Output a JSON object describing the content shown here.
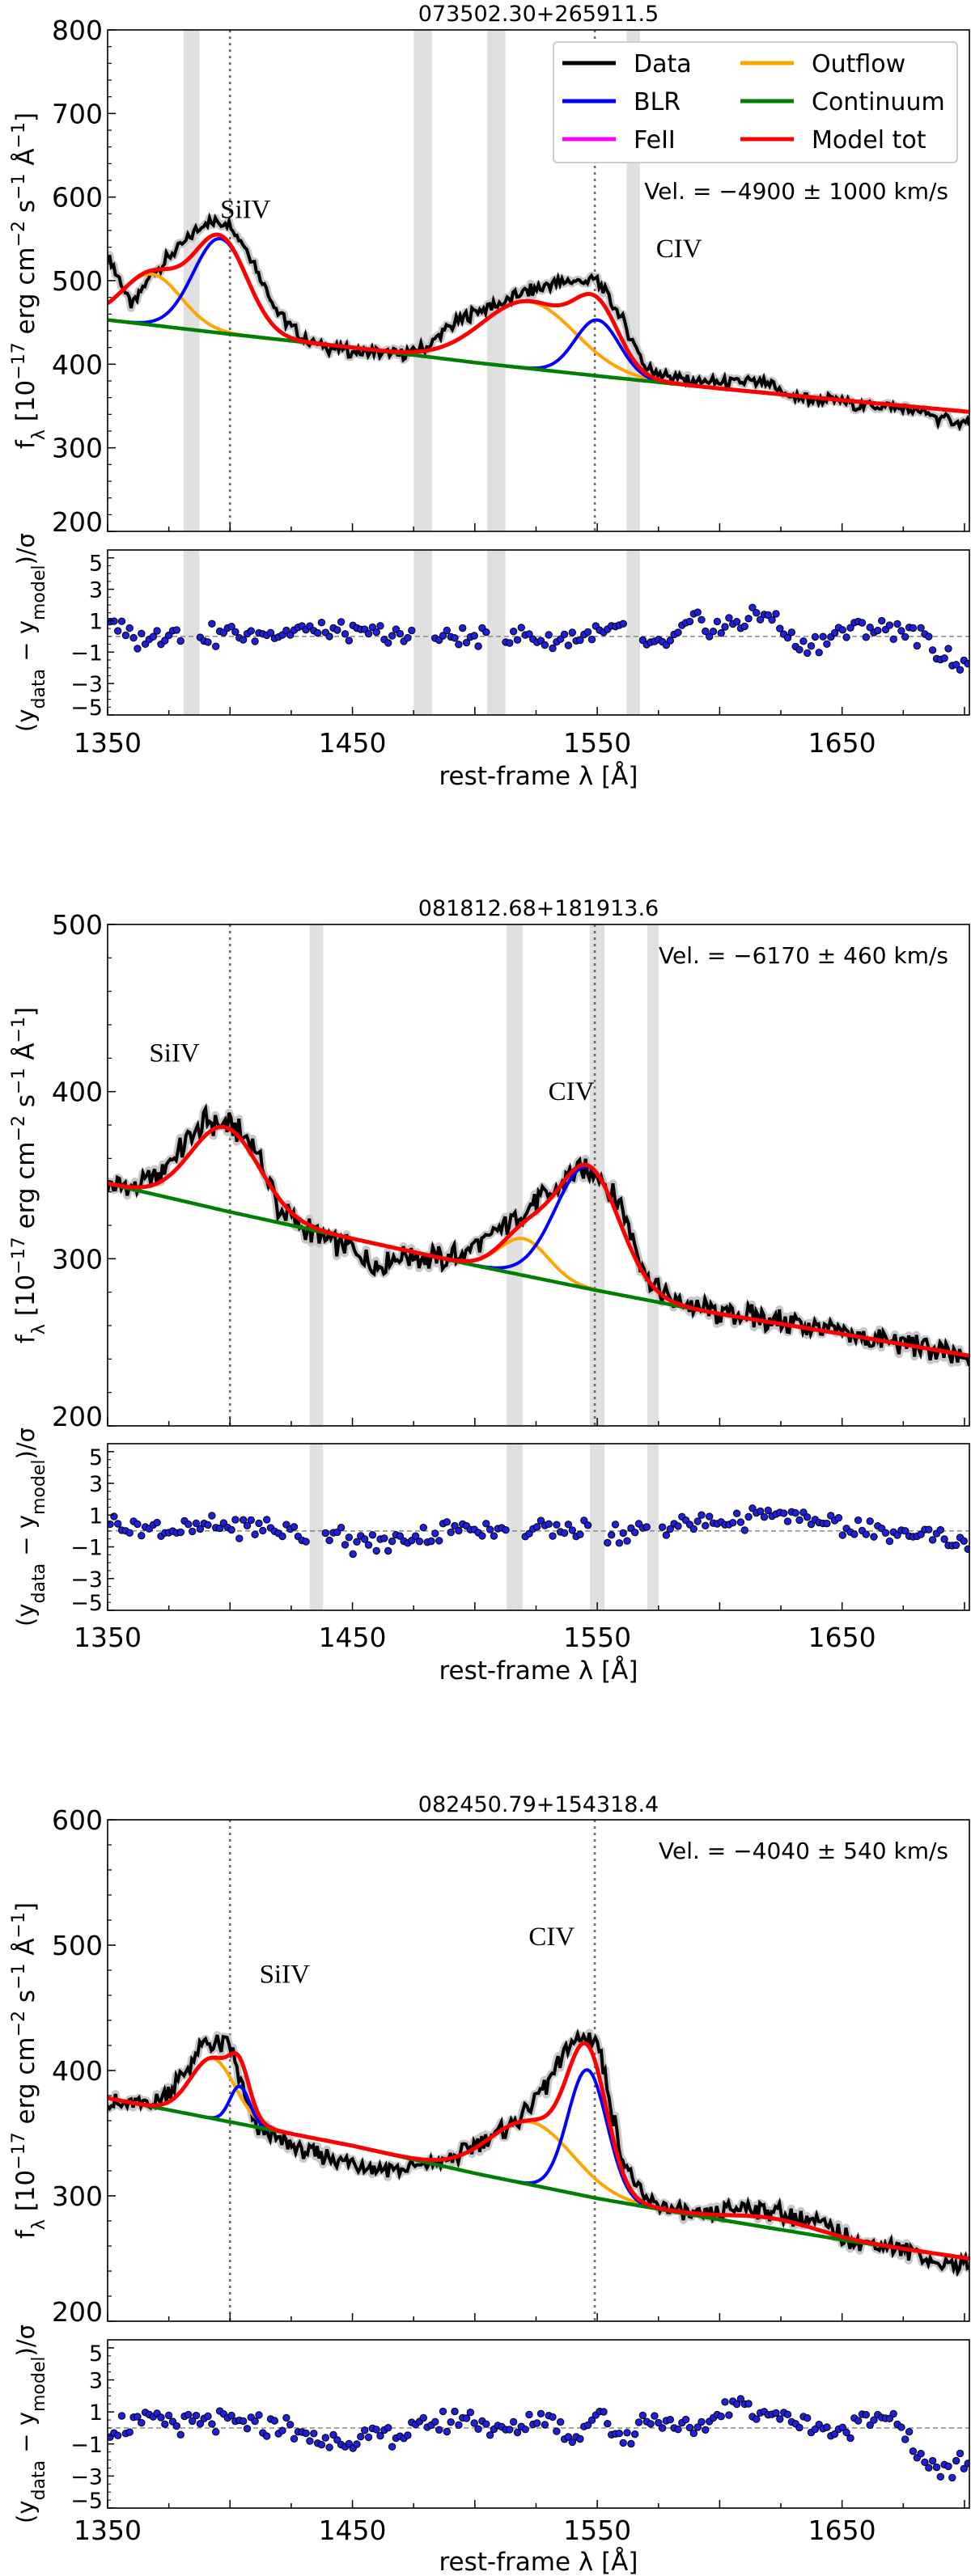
{
  "legend": {
    "entries": [
      {
        "label": "Data",
        "color": "#000000"
      },
      {
        "label": "Outflow",
        "color": "#ffa500"
      },
      {
        "label": "BLR",
        "color": "#0000ff"
      },
      {
        "label": "Continuum",
        "color": "#008000"
      },
      {
        "label": "FeII",
        "color": "#ff00ff"
      },
      {
        "label": "Model tot",
        "color": "#ff0000"
      }
    ],
    "placement": "top-right (first panel only)"
  },
  "axis_text": {
    "ylabel_main": {
      "f": "f",
      "sub": "λ",
      "a": " [10",
      "e1": "−17",
      "b": " erg cm",
      "e2": "−2",
      "c": " s",
      "e3": "−1",
      "d": " Å",
      "e4": "−1",
      "end": "]"
    },
    "ylabel_resid": {
      "open": "(y",
      "sub1": "data",
      "mid": " − y",
      "sub2": "model",
      "end": ")/σ"
    },
    "xlabel": "rest-frame λ [Å]",
    "line_label_siiv": "SiIV",
    "line_label_civ": "CIV"
  },
  "chart_data": [
    {
      "type": "line",
      "title": "073502.30+265911.5",
      "velocity_text": "Vel. = −4900 ± 1000 km/s",
      "xlim": [
        1350,
        1702
      ],
      "ylim": [
        200,
        800
      ],
      "yticks": [
        "200",
        "300",
        "400",
        "500",
        "600",
        "700",
        "800"
      ],
      "xticks": [
        "1350",
        "1450",
        "1550",
        "1650"
      ],
      "resid_ylim": [
        -5,
        5.5
      ],
      "resid_yticks": [
        "5",
        "3",
        "1",
        "−1",
        "−3",
        "−5"
      ],
      "reference_lines": [
        1400,
        1549
      ],
      "masked_ranges": [
        [
          1381,
          1387.5
        ],
        [
          1475,
          1482.5
        ],
        [
          1505,
          1512.5
        ],
        [
          1562,
          1567.5
        ]
      ],
      "continuum": {
        "x": [
          1350,
          1400,
          1450,
          1500,
          1550,
          1600,
          1650,
          1702
        ],
        "y": [
          453,
          436,
          420,
          402,
          386,
          371,
          357,
          343
        ]
      },
      "components": [
        {
          "name": "Outflow",
          "center": 1368,
          "amplitude": 61,
          "sigma": 12
        },
        {
          "name": "BLR",
          "center": 1396,
          "amplitude": 113,
          "sigma": 11
        },
        {
          "name": "Outflow",
          "center": 1522,
          "amplitude": 80,
          "sigma": 19
        },
        {
          "name": "BLR",
          "center": 1550,
          "amplitude": 67,
          "sigma": 9
        }
      ],
      "data": {
        "x_start": 1350,
        "x_step": 10,
        "y": [
          530,
          470,
          515,
          540,
          570,
          570,
          520,
          460,
          430,
          420,
          415,
          415,
          412,
          420,
          445,
          462,
          472,
          485,
          495,
          500,
          500,
          455,
          395,
          385,
          380,
          378,
          380,
          375,
          360,
          358,
          355,
          350,
          348,
          345,
          335,
          330
        ]
      },
      "residuals": {
        "x_start": 1350,
        "x_step": 10,
        "y": [
          1.2,
          -0.3,
          0,
          0.3,
          0,
          0.2,
          0,
          0.3,
          0.5,
          0.2,
          0.1,
          0.2,
          -0.2,
          0,
          0,
          -0.2,
          0,
          0.1,
          -0.2,
          0,
          0.3,
          0.5,
          -0.8,
          -0.5,
          1,
          0.5,
          1,
          1.5,
          -0.5,
          -0.5,
          0.3,
          0.5,
          0.6,
          0.2,
          -1,
          -2
        ]
      },
      "labels": {
        "siiv_at": [
          1396,
          575
        ],
        "civ_at": [
          1574,
          528
        ]
      }
    },
    {
      "type": "line",
      "title": "081812.68+181913.6",
      "velocity_text": "Vel. = −6170 ± 460 km/s",
      "xlim": [
        1350,
        1702
      ],
      "ylim": [
        200,
        500
      ],
      "yticks": [
        "200",
        "300",
        "400",
        "500"
      ],
      "xticks": [
        "1350",
        "1450",
        "1550",
        "1650"
      ],
      "resid_ylim": [
        -5,
        5.5
      ],
      "resid_yticks": [
        "5",
        "3",
        "1",
        "−1",
        "−3",
        "−5"
      ],
      "reference_lines": [
        1400,
        1549
      ],
      "masked_ranges": [
        [
          1432.5,
          1438
        ],
        [
          1513,
          1519.5
        ],
        [
          1547,
          1553
        ],
        [
          1570.5,
          1575
        ]
      ],
      "continuum": {
        "x": [
          1350,
          1400,
          1450,
          1500,
          1550,
          1600,
          1650,
          1702
        ],
        "y": [
          345,
          328,
          312,
          296,
          281,
          267,
          255,
          242
        ]
      },
      "components": [
        {
          "name": "BLR",
          "center": 1398,
          "amplitude": 50,
          "sigma": 14
        },
        {
          "name": "Outflow",
          "center": 1520,
          "amplitude": 22,
          "sigma": 10
        },
        {
          "name": "BLR",
          "center": 1546,
          "amplitude": 73,
          "sigma": 13
        }
      ],
      "data": {
        "x_start": 1350,
        "x_step": 10,
        "y": [
          345,
          342,
          350,
          365,
          382,
          380,
          368,
          330,
          318,
          312,
          305,
          295,
          302,
          300,
          300,
          307,
          318,
          328,
          338,
          352,
          352,
          330,
          290,
          275,
          270,
          268,
          266,
          263,
          262,
          258,
          255,
          252,
          250,
          248,
          245,
          240
        ]
      },
      "residuals": {
        "x_start": 1350,
        "x_step": 10,
        "y": [
          0.8,
          0.3,
          0.2,
          0,
          0.2,
          0.3,
          0.2,
          0.1,
          -0.3,
          0,
          -0.8,
          -0.8,
          -0.5,
          -0.3,
          0,
          0.3,
          0.1,
          0,
          0,
          0.2,
          0,
          -0.2,
          0.2,
          0.3,
          0.5,
          0.6,
          0.8,
          1,
          0.8,
          0.6,
          0.3,
          0,
          -0.3,
          -0.2,
          -0.3,
          -0.8
        ]
      },
      "labels": {
        "siiv_at": [
          1367,
          418
        ],
        "civ_at": [
          1530,
          395
        ]
      }
    },
    {
      "type": "line",
      "title": "082450.79+154318.4",
      "velocity_text": "Vel. = −4040 ± 540 km/s",
      "xlim": [
        1350,
        1702
      ],
      "ylim": [
        200,
        600
      ],
      "yticks": [
        "200",
        "300",
        "400",
        "500",
        "600"
      ],
      "xticks": [
        "1350",
        "1450",
        "1550",
        "1650"
      ],
      "resid_ylim": [
        -5,
        5.5
      ],
      "resid_yticks": [
        "5",
        "3",
        "1",
        "−1",
        "−3",
        "−5"
      ],
      "reference_lines": [
        1400,
        1549
      ],
      "masked_ranges": [],
      "continuum": {
        "x": [
          1350,
          1400,
          1450,
          1500,
          1550,
          1600,
          1650,
          1702
        ],
        "y": [
          378,
          359,
          340,
          318,
          298,
          281,
          265,
          250
        ]
      },
      "components": [
        {
          "name": "Outflow",
          "center": 1393,
          "amplitude": 48,
          "sigma": 9
        },
        {
          "name": "BLR",
          "center": 1404,
          "amplitude": 30,
          "sigma": 4
        },
        {
          "name": "Outflow",
          "center": 1523,
          "amplitude": 50,
          "sigma": 17
        },
        {
          "name": "BLR",
          "center": 1546,
          "amplitude": 101,
          "sigma": 8
        },
        {
          "name": "FeII",
          "center": 1622,
          "amplitude": 8,
          "sigma": 18
        }
      ],
      "data": {
        "x_start": 1350,
        "x_step": 10,
        "y": [
          375,
          372,
          375,
          395,
          422,
          420,
          355,
          345,
          335,
          330,
          327,
          322,
          322,
          325,
          328,
          340,
          350,
          365,
          390,
          425,
          425,
          330,
          295,
          290,
          282,
          285,
          292,
          288,
          283,
          278,
          268,
          262,
          260,
          255,
          245,
          245
        ]
      },
      "residuals": {
        "x_start": 1350,
        "x_step": 10,
        "y": [
          0,
          0.3,
          0.5,
          0.3,
          0.2,
          0.4,
          0.1,
          0.3,
          -0.5,
          -0.8,
          -0.7,
          -0.5,
          -0.5,
          0.2,
          0.5,
          0.6,
          -0.3,
          0.3,
          0.8,
          -0.8,
          1,
          -0.8,
          0.5,
          0.5,
          -0.5,
          1,
          1.5,
          0.8,
          0.5,
          0.2,
          -0.5,
          1,
          0.6,
          -1.5,
          -3,
          -2
        ]
      },
      "labels": {
        "siiv_at": [
          1412,
          470
        ],
        "civ_at": [
          1522,
          500
        ]
      }
    }
  ]
}
